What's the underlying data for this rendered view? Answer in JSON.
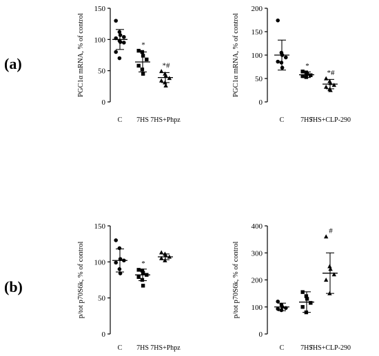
{
  "panel_labels": {
    "a": "(a)",
    "b": "(b)"
  },
  "chart_data": [
    {
      "type": "scatter",
      "panel": "(a)",
      "ylabel": "PGC1α mRNA, % of control",
      "ylim": [
        0,
        150
      ],
      "yticks": [
        0,
        50,
        100,
        150
      ],
      "categories": [
        "C",
        "7HS",
        "7HS+Phpz"
      ],
      "groups": [
        {
          "marker": "circle",
          "mean": 100,
          "sd": 16,
          "points": [
            130,
            112,
            107,
            104,
            102,
            98,
            96,
            95,
            80,
            70
          ],
          "annotation": ""
        },
        {
          "marker": "square",
          "mean": 64,
          "sd": 16,
          "points": [
            82,
            80,
            74,
            68,
            58,
            52,
            45
          ],
          "annotation": "*"
        },
        {
          "marker": "triangle",
          "mean": 39,
          "sd": 8,
          "points": [
            49,
            45,
            42,
            38,
            34,
            31,
            26
          ],
          "annotation": "*#"
        }
      ]
    },
    {
      "type": "scatter",
      "panel": "(a)",
      "ylabel": "PGC1α mRNA, % of control",
      "ylim": [
        0,
        200
      ],
      "yticks": [
        0,
        50,
        100,
        150,
        200
      ],
      "categories": [
        "C",
        "7HS",
        "7HS+CLP-290"
      ],
      "groups": [
        {
          "marker": "circle",
          "mean": 100,
          "sd": 32,
          "points": [
            174,
            105,
            100,
            95,
            86,
            84,
            73
          ],
          "annotation": ""
        },
        {
          "marker": "square",
          "mean": 58,
          "sd": 6,
          "points": [
            65,
            63,
            60,
            57,
            55,
            53
          ],
          "annotation": "*"
        },
        {
          "marker": "triangle",
          "mean": 38,
          "sd": 10,
          "points": [
            50,
            44,
            40,
            36,
            32,
            27,
            25
          ],
          "annotation": "*#"
        }
      ]
    },
    {
      "type": "scatter",
      "panel": "(b)",
      "ylabel": "p/tot p70S6k, % of control",
      "ylim": [
        0,
        150
      ],
      "yticks": [
        0,
        50,
        100,
        150
      ],
      "categories": [
        "C",
        "7HS",
        "7HS+Phpz"
      ],
      "groups": [
        {
          "marker": "circle",
          "mean": 102,
          "sd": 16,
          "points": [
            130,
            119,
            104,
            102,
            99,
            90,
            84
          ],
          "annotation": ""
        },
        {
          "marker": "square",
          "mean": 82,
          "sd": 8,
          "points": [
            89,
            88,
            85,
            82,
            79,
            75,
            67
          ],
          "annotation": "*"
        },
        {
          "marker": "triangle",
          "mean": 107,
          "sd": 4,
          "points": [
            113,
            111,
            109,
            107,
            105,
            102
          ],
          "annotation": ""
        }
      ]
    },
    {
      "type": "scatter",
      "panel": "(b)",
      "ylabel": "p/tot p70S6k, % of control",
      "ylim": [
        0,
        400
      ],
      "yticks": [
        0,
        100,
        200,
        300,
        400
      ],
      "categories": [
        "C",
        "7HS",
        "7HS+CLP-290"
      ],
      "groups": [
        {
          "marker": "circle",
          "mean": 100,
          "sd": 14,
          "points": [
            120,
            108,
            100,
            96,
            93,
            88
          ],
          "annotation": ""
        },
        {
          "marker": "square",
          "mean": 118,
          "sd": 38,
          "points": [
            155,
            140,
            130,
            115,
            100,
            80
          ],
          "annotation": ""
        },
        {
          "marker": "triangle",
          "mean": 225,
          "sd": 75,
          "points": [
            360,
            250,
            240,
            220,
            200,
            150
          ],
          "annotation": "#"
        }
      ]
    }
  ]
}
